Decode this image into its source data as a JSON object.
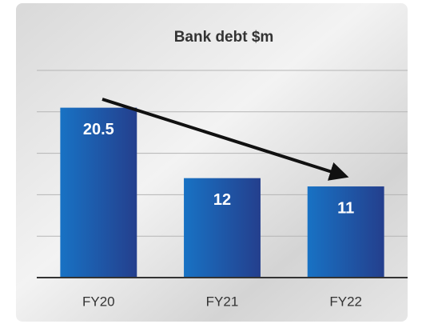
{
  "chart_data": {
    "type": "bar",
    "title": "Bank debt $m",
    "categories": [
      "FY20",
      "FY21",
      "FY22"
    ],
    "values": [
      20.5,
      12,
      11
    ],
    "ylim": [
      0,
      25
    ],
    "yticks": [
      5,
      10,
      15,
      20,
      25
    ],
    "grid": true
  }
}
